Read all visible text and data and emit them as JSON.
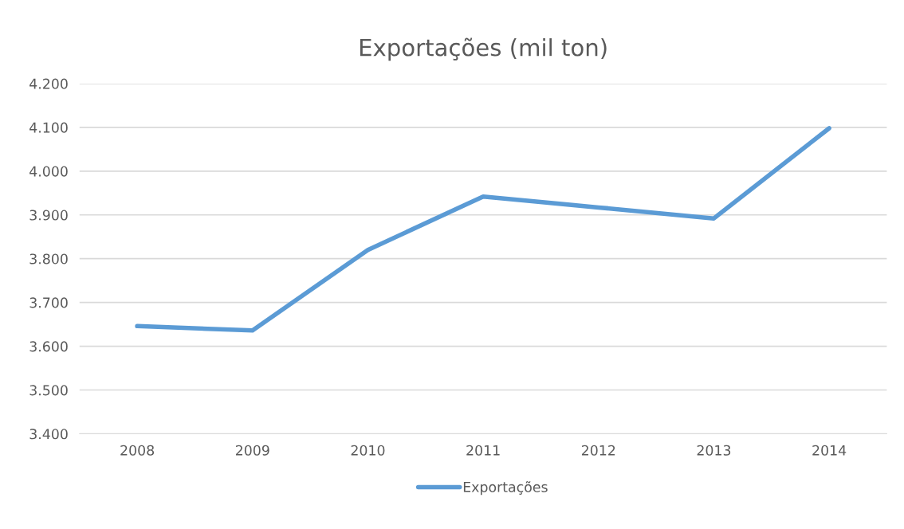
{
  "chart_data": {
    "type": "line",
    "title": "Exportações (mil ton)",
    "categories": [
      "2008",
      "2009",
      "2010",
      "2011",
      "2012",
      "2013",
      "2014"
    ],
    "series": [
      {
        "name": "Exportações",
        "color": "#5b9bd5",
        "values": [
          3646,
          3636,
          3820,
          3942,
          3917,
          3892,
          4098
        ]
      }
    ],
    "ylim": [
      3400,
      4200
    ],
    "yticks": [
      {
        "value": 3400,
        "label": "3.400"
      },
      {
        "value": 3500,
        "label": "3.500"
      },
      {
        "value": 3600,
        "label": "3.600"
      },
      {
        "value": 3700,
        "label": "3.700"
      },
      {
        "value": 3800,
        "label": "3.800"
      },
      {
        "value": 3900,
        "label": "3.900"
      },
      {
        "value": 4000,
        "label": "4.000"
      },
      {
        "value": 4100,
        "label": "4.100"
      },
      {
        "value": 4200,
        "label": "4.200"
      }
    ],
    "grid": "y",
    "legend": "bottom",
    "marker": "none",
    "line_style": "solid"
  }
}
